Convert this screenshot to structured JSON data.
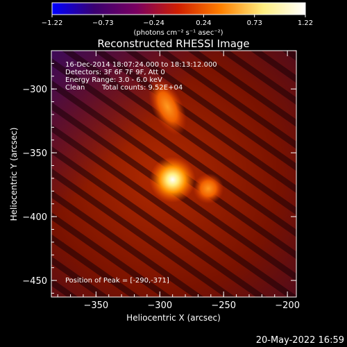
{
  "chart_data": {
    "type": "heatmap",
    "title": "Reconstructed RHESSI Image",
    "xlabel": "Heliocentric X (arcsec)",
    "ylabel": "Heliocentric Y (arcsec)",
    "xlim": [
      -385,
      -193
    ],
    "ylim": [
      -463,
      -270
    ],
    "x_ticks": [
      -350,
      -300,
      -250,
      -200
    ],
    "y_ticks": [
      -450,
      -400,
      -350,
      -300
    ],
    "x_tick_labels": [
      "−350",
      "−300",
      "−250",
      "−200"
    ],
    "y_tick_labels": [
      "−450",
      "−400",
      "−350",
      "−300"
    ],
    "colorbar": {
      "min": -1.22,
      "max": 1.22,
      "tick_values": [
        -1.22,
        -0.73,
        -0.24,
        0.24,
        0.73,
        1.22
      ],
      "tick_labels": [
        "−1.22",
        "−0.73",
        "−0.24",
        "0.24",
        "0.73",
        "1.22"
      ],
      "unit_label": "(photons cm⁻² s⁻¹ asec⁻²)",
      "stops": [
        "#0000ff",
        "#3a0070",
        "#7a0060",
        "#d02000",
        "#ff8000",
        "#ffee80",
        "#ffffff"
      ]
    },
    "info_lines": [
      "16-Dec-2014 18:07:24.000 to 18:13:12.000",
      "Detectors: 3F 6F 7F 9F, Att 0",
      "Energy Range: 3.0 - 6.0 keV"
    ],
    "info_clean": "Clean",
    "info_counts": "Total counts: 9.52E+04",
    "peak_label": "Position of Peak = [-290,-371]",
    "sources": [
      {
        "x": -290,
        "y": -371,
        "value": 1.22,
        "sigma_x": 6,
        "sigma_y": 6
      },
      {
        "x": -294,
        "y": -314,
        "value": 0.6,
        "sigma_x": 4,
        "sigma_y": 8
      },
      {
        "x": -262,
        "y": -378,
        "value": 0.45,
        "sigma_x": 4,
        "sigma_y": 4
      }
    ]
  },
  "timestamp": "20-May-2022 16:59"
}
